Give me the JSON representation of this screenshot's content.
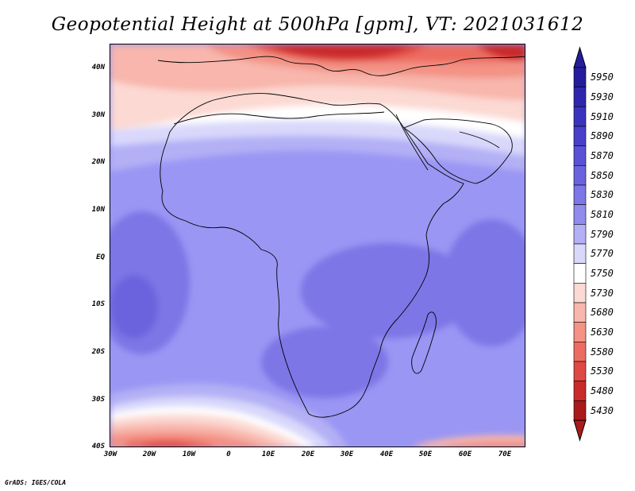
{
  "title": "Geopotential Height at 500hPa [gpm], VT: 2021031612",
  "credit": "GrADS: IGES/COLA",
  "axes": {
    "lat_labels": [
      "40N",
      "30N",
      "20N",
      "10N",
      "EQ",
      "10S",
      "20S",
      "30S",
      "40S"
    ],
    "lon_labels": [
      "30W",
      "20W",
      "10W",
      "0",
      "10E",
      "20E",
      "30E",
      "40E",
      "50E",
      "60E",
      "70E"
    ]
  },
  "colorbar": {
    "levels": [
      "5950",
      "5930",
      "5910",
      "5890",
      "5870",
      "5850",
      "5830",
      "5810",
      "5790",
      "5770",
      "5750",
      "5730",
      "5680",
      "5630",
      "5580",
      "5530",
      "5480",
      "5430"
    ],
    "colors": [
      "#241c9c",
      "#2e27ad",
      "#3a34bd",
      "#4840c9",
      "#5a52d4",
      "#6b63dd",
      "#7d76e6",
      "#918bee",
      "#b3b0f5",
      "#d9d8fb",
      "#ffffff",
      "#fcd9d3",
      "#f8b6ac",
      "#f39285",
      "#ec6c61",
      "#e04843",
      "#c92a2a",
      "#a91b1b"
    ]
  }
}
